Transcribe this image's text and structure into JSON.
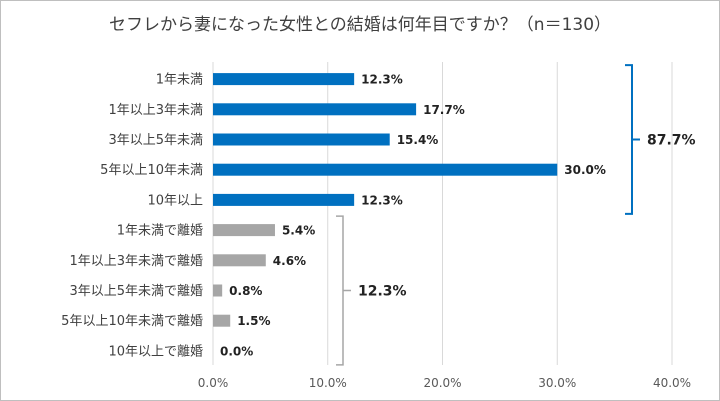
{
  "chart_data": {
    "type": "bar",
    "orientation": "horizontal",
    "title": "セフレから妻になった女性との結婚は何年目ですか？（n＝130）",
    "categories": [
      "1年未満",
      "1年以上3年未満",
      "3年以上5年未満",
      "5年以上10年未満",
      "10年以上",
      "1年未満で離婚",
      "1年以上3年未満で離婚",
      "3年以上5年未満で離婚",
      "5年以上10年未満で離婚",
      "10年以上で離婚"
    ],
    "values": [
      12.3,
      17.7,
      15.4,
      30.0,
      12.3,
      5.4,
      4.6,
      0.8,
      1.5,
      0.0
    ],
    "value_labels": [
      "12.3%",
      "17.7%",
      "15.4%",
      "30.0%",
      "12.3%",
      "5.4%",
      "4.6%",
      "0.8%",
      "1.5%",
      "0.0%"
    ],
    "bar_colors": [
      "#0070c0",
      "#0070c0",
      "#0070c0",
      "#0070c0",
      "#0070c0",
      "#a6a6a6",
      "#a6a6a6",
      "#a6a6a6",
      "#a6a6a6",
      "#a6a6a6"
    ],
    "xlim": [
      0,
      40
    ],
    "x_ticks": [
      "0.0%",
      "10.0%",
      "20.0%",
      "30.0%",
      "40.0%"
    ],
    "grid": "vertical",
    "groups": [
      {
        "label": "87.7%",
        "from": 0,
        "to": 4,
        "color": "#0070c0"
      },
      {
        "label": "12.3%",
        "from": 5,
        "to": 9,
        "color": "#a6a6a6"
      }
    ]
  }
}
